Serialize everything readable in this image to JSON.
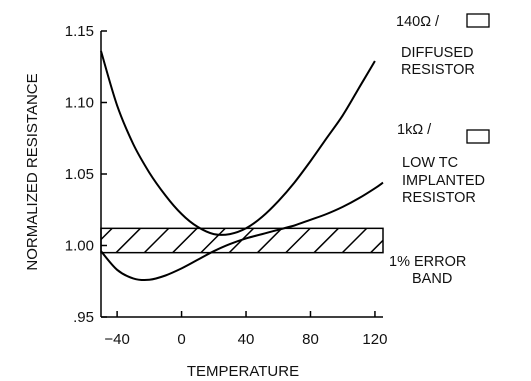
{
  "chart_data": {
    "type": "line",
    "xlabel": "TEMPERATURE",
    "ylabel": "NORMALIZED RESISTANCE",
    "xlim": [
      -50,
      125
    ],
    "ylim": [
      0.95,
      1.15
    ],
    "x_ticks": [
      "−40",
      "0",
      "40",
      "80",
      "120"
    ],
    "x_tick_values": [
      -40,
      0,
      40,
      80,
      120
    ],
    "y_ticks": [
      "1.15",
      "1.10",
      "1.05",
      "1.00",
      ".95"
    ],
    "y_tick_values": [
      1.15,
      1.1,
      1.05,
      1.0,
      0.95
    ],
    "grid": false,
    "series": [
      {
        "name": "DIFFUSED RESISTOR",
        "x": [
          -50,
          -40,
          -30,
          -20,
          -10,
          0,
          10,
          20,
          30,
          40,
          50,
          60,
          70,
          80,
          90,
          100,
          110,
          120
        ],
        "y": [
          1.136,
          1.098,
          1.071,
          1.051,
          1.035,
          1.022,
          1.013,
          1.008,
          1.008,
          1.012,
          1.02,
          1.031,
          1.044,
          1.059,
          1.075,
          1.091,
          1.11,
          1.129
        ]
      },
      {
        "name": "LOW TC IMPLANTED RESISTOR",
        "x": [
          -50,
          -40,
          -30,
          -20,
          -10,
          0,
          10,
          20,
          30,
          40,
          50,
          60,
          70,
          80,
          90,
          100,
          110,
          120,
          125
        ],
        "y": [
          0.996,
          0.983,
          0.977,
          0.976,
          0.979,
          0.984,
          0.99,
          0.996,
          1.001,
          1.005,
          1.008,
          1.011,
          1.014,
          1.018,
          1.022,
          1.027,
          1.033,
          1.04,
          1.044
        ]
      }
    ],
    "band": {
      "name": "1% ERROR BAND",
      "y_low": 0.995,
      "y_high": 1.012,
      "pattern": "hatched"
    },
    "annotations": {
      "diffused": {
        "value": "140Ω /",
        "line1": "DIFFUSED",
        "line2": "RESISTOR"
      },
      "implanted": {
        "value": "1kΩ /",
        "line1": "LOW TC",
        "line2": "IMPLANTED",
        "line3": "RESISTOR"
      },
      "band": {
        "line1": "1% ERROR",
        "line2": "BAND"
      }
    }
  }
}
